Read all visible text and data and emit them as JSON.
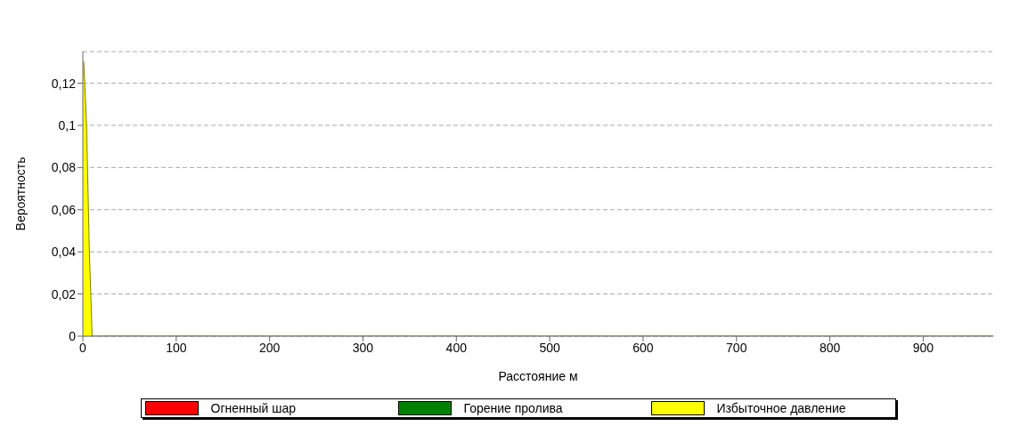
{
  "chart_data": {
    "type": "area",
    "xlabel": "Расстояние м",
    "ylabel": "Вероятность",
    "x": [
      0,
      1,
      4,
      7,
      10,
      975
    ],
    "series": [
      {
        "name": "Огненный шар",
        "color": "#ff0000",
        "values": [
          null,
          null,
          null,
          null,
          null,
          null
        ]
      },
      {
        "name": "Горение пролива",
        "color": "#008000",
        "values": [
          null,
          null,
          null,
          null,
          null,
          null
        ]
      },
      {
        "name": "Избыточное давление",
        "color": "#ffff00",
        "values": [
          0.13,
          0.13,
          0.1,
          0.04,
          0,
          0
        ]
      }
    ],
    "xlim": [
      0,
      975
    ],
    "xticks": [
      0,
      100,
      200,
      300,
      400,
      500,
      600,
      700,
      800,
      900
    ],
    "ylim": [
      0,
      0.135
    ],
    "yticks": [
      0,
      {
        "value": 0.02,
        "label": "0,02"
      },
      {
        "value": 0.04,
        "label": "0,04"
      },
      {
        "value": 0.06,
        "label": "0,06"
      },
      {
        "value": 0.08,
        "label": "0,08"
      },
      {
        "value": 0.1,
        "label": "0,1"
      },
      {
        "value": 0.12,
        "label": "0,12"
      }
    ],
    "grid": "y",
    "legend": "bottom"
  }
}
